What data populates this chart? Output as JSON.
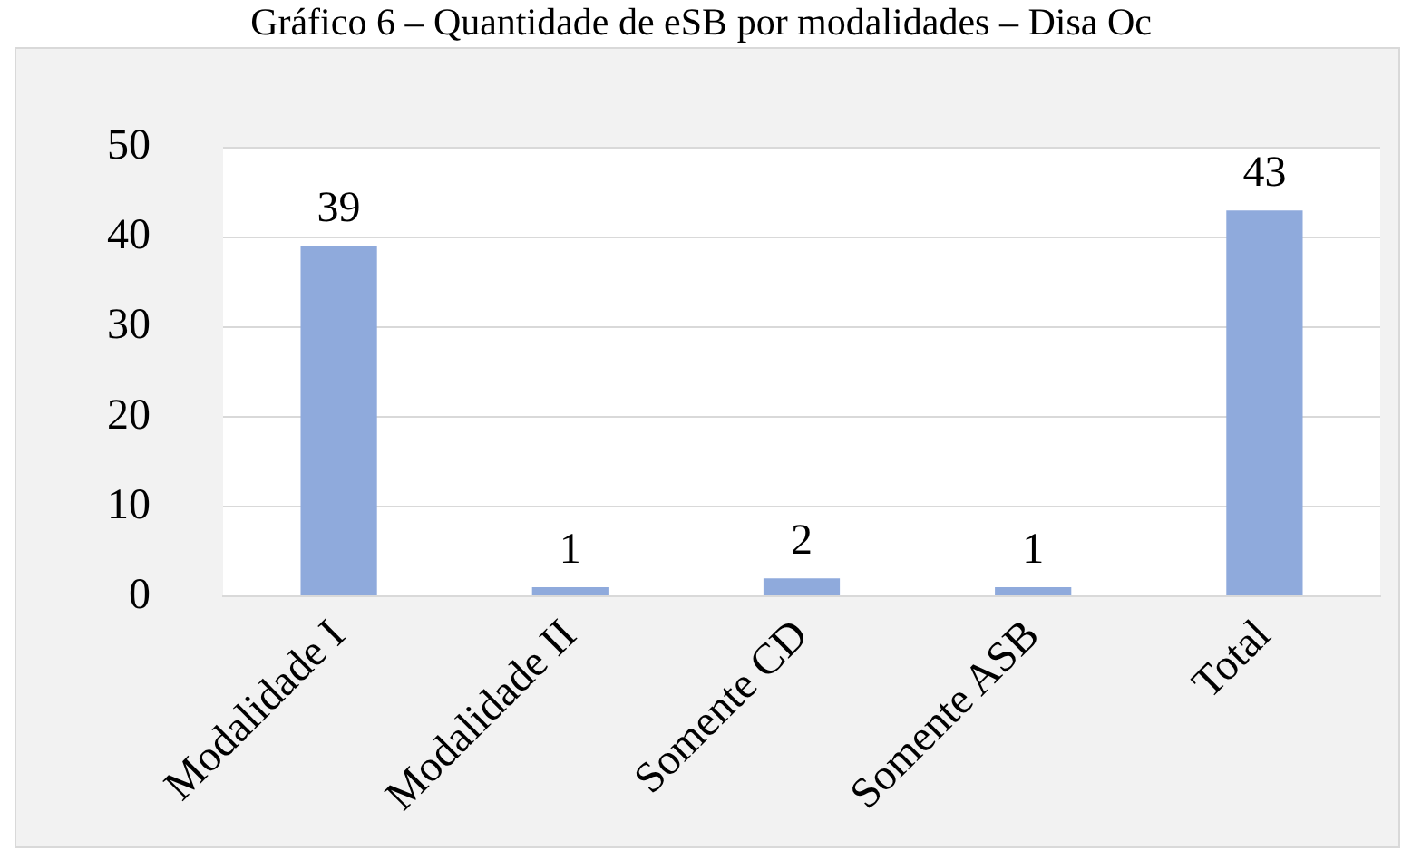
{
  "chart_data": {
    "type": "bar",
    "title": "Gráfico 6 – Quantidade de eSB por modalidades – Disa Oc",
    "categories": [
      "Modalidade I",
      "Modalidade II",
      "Somente CD",
      "Somente ASB",
      "Total"
    ],
    "values": [
      39,
      1,
      2,
      1,
      43
    ],
    "color": "#8faadc",
    "ylim": [
      0,
      50
    ],
    "yticks": [
      0,
      10,
      20,
      30,
      40,
      50
    ],
    "grid": "y",
    "data_labels": true
  }
}
